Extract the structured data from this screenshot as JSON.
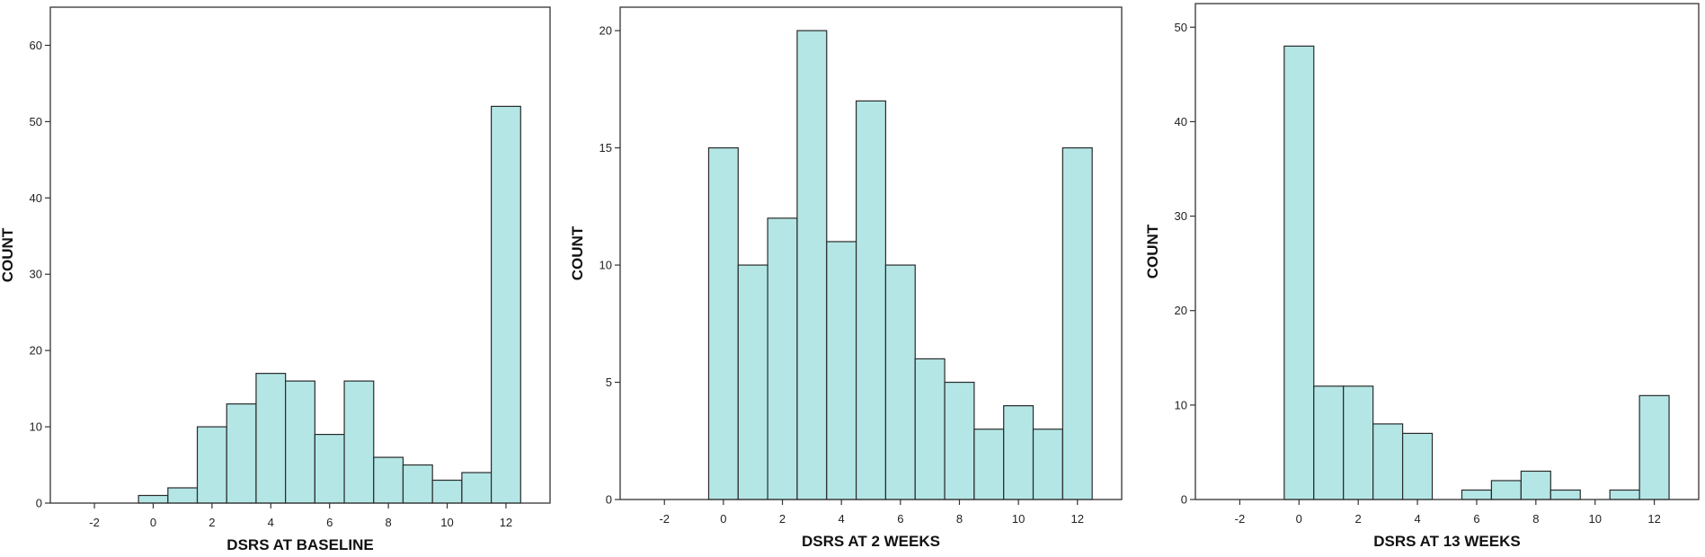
{
  "chart_data": [
    {
      "type": "bar",
      "xlabel": "DSRS AT BASELINE",
      "ylabel": "COUNT",
      "xlim": [
        -3.5,
        13.5
      ],
      "ylim": [
        0,
        65
      ],
      "xticks": [
        -2,
        0,
        2,
        4,
        6,
        8,
        10,
        12
      ],
      "yticks": [
        0,
        10,
        20,
        30,
        40,
        50,
        60
      ],
      "bar_color": "#b4e6e6",
      "x": [
        0,
        1,
        2,
        3,
        4,
        5,
        6,
        7,
        8,
        9,
        10,
        11,
        12
      ],
      "values": [
        1,
        2,
        10,
        13,
        17,
        16,
        9,
        16,
        6,
        5,
        3,
        4,
        52
      ]
    },
    {
      "type": "bar",
      "xlabel": "DSRS AT 2 WEEKS",
      "ylabel": "COUNT",
      "xlim": [
        -3.5,
        13.5
      ],
      "ylim": [
        0,
        21
      ],
      "xticks": [
        -2,
        0,
        2,
        4,
        6,
        8,
        10,
        12
      ],
      "yticks": [
        0,
        5,
        10,
        15,
        20
      ],
      "bar_color": "#b4e6e6",
      "x": [
        0,
        1,
        2,
        3,
        4,
        5,
        6,
        7,
        8,
        9,
        10,
        11,
        12
      ],
      "values": [
        15,
        10,
        12,
        20,
        11,
        17,
        10,
        6,
        5,
        3,
        4,
        3,
        15
      ]
    },
    {
      "type": "bar",
      "xlabel": "DSRS AT 13 WEEKS",
      "ylabel": "COUNT",
      "xlim": [
        -3.5,
        13.5
      ],
      "ylim": [
        0,
        52.5
      ],
      "xticks": [
        -2,
        0,
        2,
        4,
        6,
        8,
        10,
        12
      ],
      "yticks": [
        0,
        10,
        20,
        30,
        40,
        50
      ],
      "bar_color": "#b4e6e6",
      "x": [
        0,
        1,
        2,
        3,
        4,
        5,
        6,
        7,
        8,
        9,
        10,
        11,
        12
      ],
      "values": [
        48,
        12,
        12,
        8,
        7,
        0,
        1,
        2,
        3,
        1,
        0,
        1,
        11
      ]
    }
  ]
}
